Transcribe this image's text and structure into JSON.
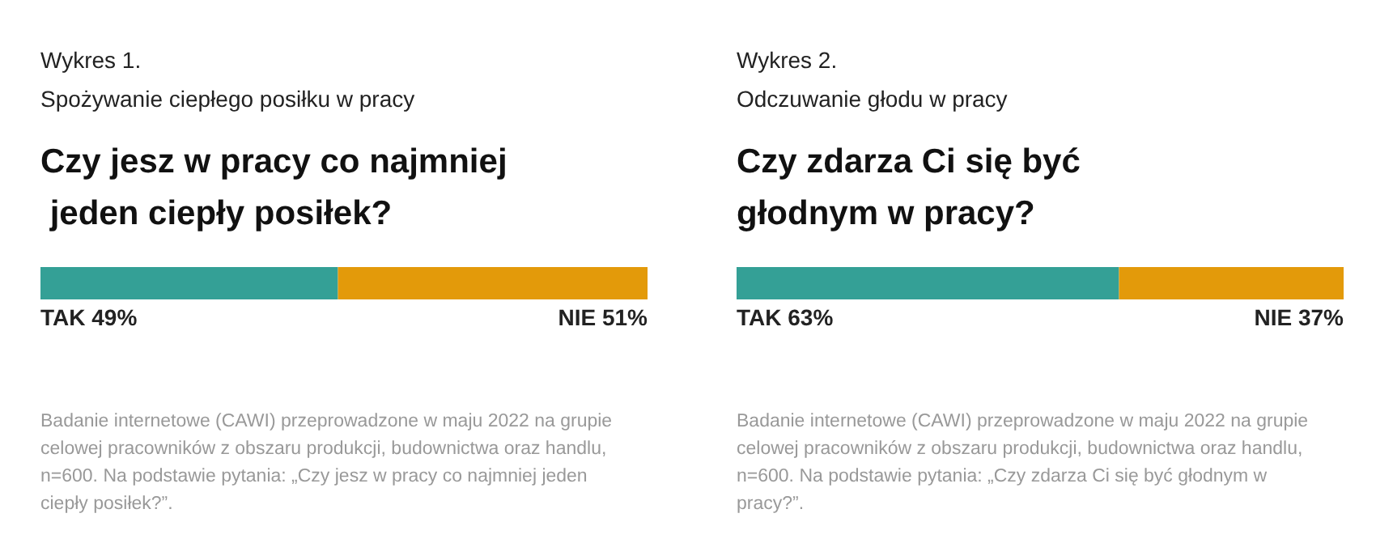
{
  "chart_data": [
    {
      "type": "bar",
      "orientation": "horizontal",
      "stacked": true,
      "title": "Czy jesz w pracy co najmniej jeden ciepły posiłek?",
      "subtitle": "Spożywanie ciepłego posiłku w pracy",
      "annotations": [
        "Wykres 1.",
        "Badanie internetowe (CAWI) przeprowadzone w maju 2022 na grupie celowej pracowników z obszaru produkcji, budownictwa oraz handlu, n=600. Na podstawie pytania: „Czy jesz w pracy co najmniej jeden ciepły posiłek?”."
      ],
      "categories": [
        null
      ],
      "series": [
        {
          "color": "#34a096",
          "values": [
            49
          ],
          "value_labels": [
            "TAK 49%"
          ]
        },
        {
          "color": "#e39a0a",
          "values": [
            51
          ],
          "value_labels": [
            "NIE 51%"
          ]
        }
      ]
    },
    {
      "type": "bar",
      "orientation": "horizontal",
      "stacked": true,
      "title": "Czy zdarza Ci się być głodnym w pracy?",
      "subtitle": "Odczuwanie głodu w pracy",
      "annotations": [
        "Wykres 2.",
        "Badanie internetowe (CAWI) przeprowadzone w maju 2022 na grupie celowej pracowników z obszaru produkcji, budownictwa oraz handlu, n=600. Na podstawie pytania: „Czy zdarza Ci się być głodnym w pracy?”."
      ],
      "categories": [
        null
      ],
      "series": [
        {
          "color": "#34a096",
          "values": [
            63
          ],
          "value_labels": [
            "TAK 63%"
          ]
        },
        {
          "color": "#e39a0a",
          "values": [
            37
          ],
          "value_labels": [
            "NIE 37%"
          ]
        }
      ]
    }
  ]
}
